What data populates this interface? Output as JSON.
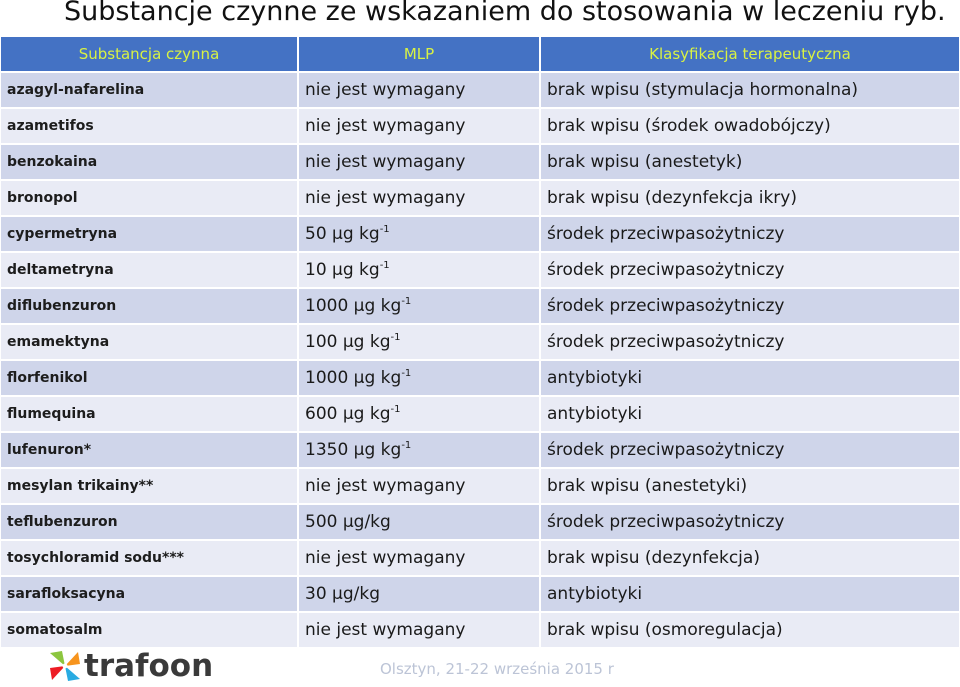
{
  "title": "Substancje czynne ze wskazaniem do stosowania w leczeniu ryb.",
  "table": {
    "headers": [
      "Substancja czynna",
      "MLP",
      "Klasyfikacja terapeutyczna"
    ],
    "rows": [
      {
        "name": "azagyl-nafarelina",
        "mlp": "nie jest wymagany",
        "mlp_sup": "",
        "klas": "brak wpisu (stymulacja hormonalna)"
      },
      {
        "name": "azametifos",
        "mlp": "nie jest wymagany",
        "mlp_sup": "",
        "klas": "brak wpisu (środek owadobójczy)"
      },
      {
        "name": "benzokaina",
        "mlp": "nie jest wymagany",
        "mlp_sup": "",
        "klas": "brak wpisu (anestetyk)"
      },
      {
        "name": "bronopol",
        "mlp": "nie jest wymagany",
        "mlp_sup": "",
        "klas": "brak wpisu (dezynfekcja ikry)"
      },
      {
        "name": "cypermetryna",
        "mlp": "50 µg kg",
        "mlp_sup": "-1",
        "klas": "środek przeciwpasożytniczy"
      },
      {
        "name": "deltametryna",
        "mlp": "10 µg kg",
        "mlp_sup": "-1",
        "klas": "środek przeciwpasożytniczy"
      },
      {
        "name": "diflubenzuron",
        "mlp": "1000 µg kg",
        "mlp_sup": "-1",
        "klas": "środek przeciwpasożytniczy"
      },
      {
        "name": "emamektyna",
        "mlp": "100 µg kg",
        "mlp_sup": "-1",
        "klas": "środek przeciwpasożytniczy"
      },
      {
        "name": "florfenikol",
        "mlp": "1000 µg kg",
        "mlp_sup": "-1",
        "klas": "antybiotyki"
      },
      {
        "name": "flumequina",
        "mlp": "600 µg kg",
        "mlp_sup": "-1",
        "klas": "antybiotyki"
      },
      {
        "name": "lufenuron*",
        "mlp": "1350 µg kg",
        "mlp_sup": "-1",
        "klas": "środek przeciwpasożytniczy"
      },
      {
        "name": "mesylan trikainy**",
        "mlp": "nie jest wymagany",
        "mlp_sup": "",
        "klas": "brak wpisu (anestetyki)"
      },
      {
        "name": "teflubenzuron",
        "mlp": "500 µg/kg",
        "mlp_sup": "",
        "klas": "środek przeciwpasożytniczy"
      },
      {
        "name": "tosychloramid sodu***",
        "mlp": "nie jest wymagany",
        "mlp_sup": "",
        "klas": "brak wpisu  (dezynfekcja)"
      },
      {
        "name": "sarafloksacyna",
        "mlp": "30 µg/kg",
        "mlp_sup": "",
        "klas": "antybiotyki"
      },
      {
        "name": "somatosalm",
        "mlp": "nie jest wymagany",
        "mlp_sup": "",
        "klas": "brak wpisu  (osmoregulacja)"
      }
    ]
  },
  "footer": {
    "logo_text": "trafoon",
    "event": "Olsztyn, 21-22 września 2015 r"
  },
  "colors": {
    "header_bg": "#4472c4",
    "header_text": "#d9f243",
    "row_odd": "#cfd5ea",
    "row_even": "#e9ebf5"
  }
}
